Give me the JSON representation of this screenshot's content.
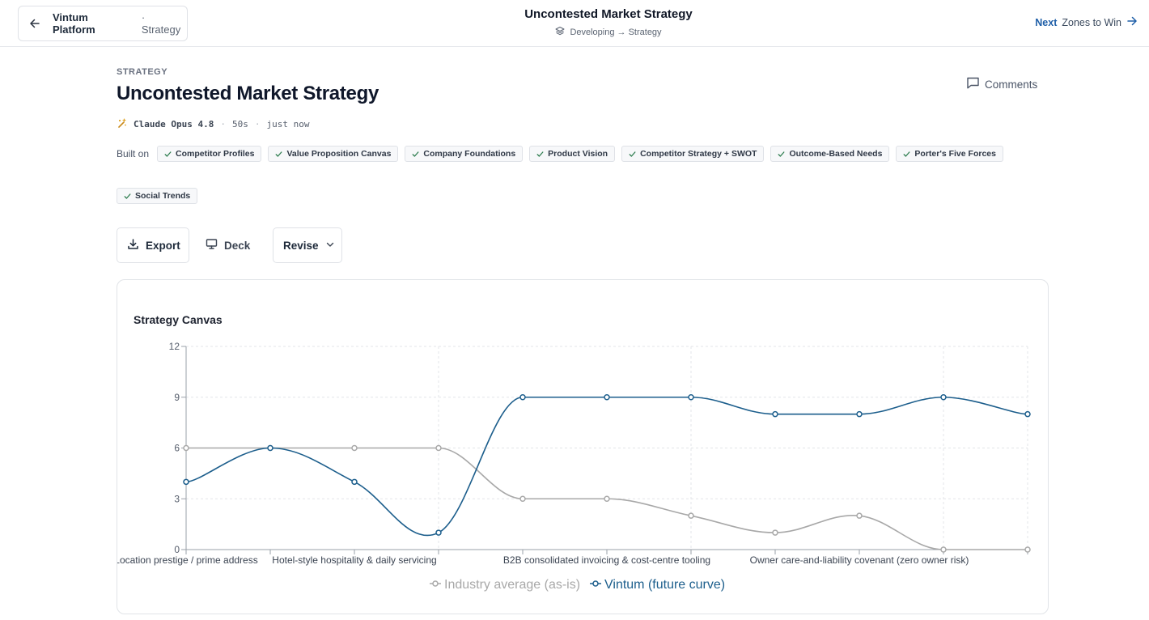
{
  "topbar": {
    "project": "Vintum Platform",
    "crumb": "· Strategy",
    "title": "Uncontested Market Strategy",
    "path": "Developing → Strategy",
    "next_label": "Next",
    "next_target": "Zones to Win"
  },
  "header": {
    "kicker": "STRATEGY",
    "title": "Uncontested Market Strategy",
    "comments_label": "Comments",
    "model": "Claude Opus 4.8",
    "duration": "50s",
    "time": "just now"
  },
  "built_on": {
    "label": "Built on",
    "items": [
      "Competitor Profiles",
      "Value Proposition Canvas",
      "Company Foundations",
      "Product Vision",
      "Competitor Strategy + SWOT",
      "Outcome-Based Needs",
      "Porter's Five Forces",
      "Social Trends"
    ]
  },
  "actions": {
    "export": "Export",
    "deck": "Deck",
    "revise": "Revise"
  },
  "colors": {
    "future": "#1c5e8c",
    "industry": "#a8a8a8",
    "accent": "#1f5fa8"
  },
  "chart_data": {
    "type": "line",
    "title": "Strategy Canvas",
    "categories": [
      "Location prestige / prime address",
      "",
      "Hotel-style hospitality & daily servicing",
      "",
      "",
      "B2B consolidated invoicing & cost-centre tooling",
      "",
      "",
      "Owner care-and-liability covenant (zero owner risk)",
      "",
      ""
    ],
    "ylim": [
      0,
      12
    ],
    "yticks": [
      "0",
      "3",
      "6",
      "9",
      "12"
    ],
    "grid": true,
    "legend": "bottom",
    "series": [
      {
        "name": "Industry average (as-is)",
        "values": [
          6,
          6,
          6,
          6,
          3,
          3,
          2,
          1,
          2,
          0,
          0
        ]
      },
      {
        "name": "Vintum (future curve)",
        "values": [
          4,
          6,
          4,
          1,
          9,
          9,
          9,
          8,
          8,
          9,
          8
        ]
      }
    ]
  }
}
